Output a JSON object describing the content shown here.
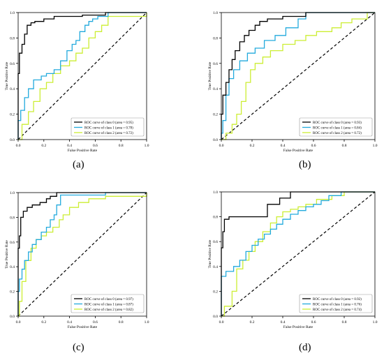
{
  "colors": {
    "class0": "#000000",
    "class1": "#22aadd",
    "class2": "#ccee33",
    "diagonal": "#000000"
  },
  "chart_data": [
    {
      "type": "line",
      "panel_label": "(a)",
      "xlabel": "False Positive Rate",
      "ylabel": "True Positive Rate",
      "xlim": [
        0,
        1
      ],
      "ylim": [
        0,
        1
      ],
      "x_ticks": [
        "0.0",
        "0.2",
        "0.4",
        "0.6",
        "0.8",
        "1.0"
      ],
      "y_ticks": [
        "0.0",
        "0.2",
        "0.4",
        "0.6",
        "0.8",
        "1.0"
      ],
      "grid": false,
      "legend_position": "lower-right",
      "series": [
        {
          "name": "ROC curve of class 0 (area = 0.95)",
          "color": "#000000",
          "x": [
            0,
            0,
            0.01,
            0.01,
            0.03,
            0.03,
            0.05,
            0.05,
            0.07,
            0.07,
            0.1,
            0.1,
            0.13,
            0.13,
            0.2,
            0.2,
            0.28,
            0.28,
            0.5,
            0.5,
            0.68,
            0.68,
            1.0
          ],
          "y": [
            0,
            0.52,
            0.52,
            0.68,
            0.68,
            0.75,
            0.75,
            0.83,
            0.83,
            0.9,
            0.9,
            0.92,
            0.92,
            0.93,
            0.93,
            0.95,
            0.95,
            0.97,
            0.97,
            0.98,
            0.98,
            1.0,
            1.0
          ]
        },
        {
          "name": "ROC curve of class 1 (area = 0.78)",
          "color": "#22aadd",
          "x": [
            0,
            0,
            0.02,
            0.02,
            0.05,
            0.05,
            0.08,
            0.08,
            0.12,
            0.12,
            0.18,
            0.18,
            0.22,
            0.22,
            0.28,
            0.28,
            0.33,
            0.33,
            0.38,
            0.38,
            0.42,
            0.42,
            0.45,
            0.45,
            0.48,
            0.48,
            0.52,
            0.52,
            0.55,
            0.55,
            0.58,
            0.58,
            0.62,
            0.62,
            0.7,
            0.7,
            1.0
          ],
          "y": [
            0,
            0.15,
            0.15,
            0.23,
            0.23,
            0.33,
            0.33,
            0.4,
            0.4,
            0.47,
            0.47,
            0.5,
            0.5,
            0.52,
            0.52,
            0.55,
            0.55,
            0.62,
            0.62,
            0.7,
            0.7,
            0.75,
            0.75,
            0.78,
            0.78,
            0.85,
            0.85,
            0.9,
            0.9,
            0.93,
            0.93,
            0.95,
            0.95,
            0.97,
            0.97,
            1.0,
            1.0
          ]
        },
        {
          "name": "ROC curve of class 2 (area = 0.72)",
          "color": "#ccee33",
          "x": [
            0,
            0.03,
            0.03,
            0.08,
            0.08,
            0.12,
            0.12,
            0.17,
            0.17,
            0.22,
            0.22,
            0.27,
            0.27,
            0.33,
            0.33,
            0.4,
            0.4,
            0.45,
            0.45,
            0.5,
            0.5,
            0.55,
            0.55,
            0.6,
            0.6,
            0.65,
            0.65,
            0.7,
            0.7,
            1.0,
            1.0
          ],
          "y": [
            0,
            0,
            0.12,
            0.12,
            0.22,
            0.22,
            0.3,
            0.3,
            0.4,
            0.4,
            0.45,
            0.45,
            0.52,
            0.52,
            0.58,
            0.58,
            0.62,
            0.62,
            0.68,
            0.68,
            0.72,
            0.72,
            0.8,
            0.8,
            0.85,
            0.85,
            0.9,
            0.9,
            0.97,
            0.97,
            1.0
          ]
        }
      ]
    },
    {
      "type": "line",
      "panel_label": "(b)",
      "xlabel": "False Positive Rate",
      "ylabel": "True Positive Rate",
      "xlim": [
        0,
        1
      ],
      "ylim": [
        0,
        1
      ],
      "x_ticks": [
        "0.0",
        "0.2",
        "0.4",
        "0.6",
        "0.8",
        "1.0"
      ],
      "y_ticks": [
        "0.0",
        "0.2",
        "0.4",
        "0.6",
        "0.8",
        "1.0"
      ],
      "grid": false,
      "legend_position": "lower-right",
      "series": [
        {
          "name": "ROC curve of class 0 (area = 0.93)",
          "color": "#000000",
          "x": [
            0,
            0,
            0.01,
            0.01,
            0.03,
            0.03,
            0.05,
            0.05,
            0.07,
            0.07,
            0.09,
            0.09,
            0.12,
            0.12,
            0.15,
            0.15,
            0.18,
            0.18,
            0.22,
            0.22,
            0.25,
            0.25,
            0.3,
            0.3,
            0.4,
            0.4,
            0.55,
            0.55,
            1.0
          ],
          "y": [
            0,
            0.2,
            0.2,
            0.35,
            0.35,
            0.45,
            0.45,
            0.55,
            0.55,
            0.63,
            0.63,
            0.7,
            0.7,
            0.77,
            0.77,
            0.82,
            0.82,
            0.86,
            0.86,
            0.9,
            0.9,
            0.93,
            0.93,
            0.95,
            0.95,
            0.97,
            0.97,
            1.0,
            1.0
          ]
        },
        {
          "name": "ROC curve of class 1 (area = 0.84)",
          "color": "#22aadd",
          "x": [
            0,
            0,
            0.01,
            0.01,
            0.03,
            0.03,
            0.05,
            0.05,
            0.08,
            0.08,
            0.12,
            0.12,
            0.17,
            0.17,
            0.22,
            0.22,
            0.28,
            0.28,
            0.35,
            0.35,
            0.42,
            0.42,
            0.5,
            0.5,
            0.55,
            0.55,
            1.0
          ],
          "y": [
            0,
            0.05,
            0.05,
            0.15,
            0.15,
            0.35,
            0.35,
            0.48,
            0.48,
            0.55,
            0.55,
            0.62,
            0.62,
            0.68,
            0.68,
            0.72,
            0.72,
            0.78,
            0.78,
            0.82,
            0.82,
            0.88,
            0.88,
            0.95,
            0.95,
            1.0,
            1.0
          ]
        },
        {
          "name": "ROC curve of class 2 (area = 0.72)",
          "color": "#ccee33",
          "x": [
            0,
            0.03,
            0.03,
            0.07,
            0.07,
            0.1,
            0.1,
            0.13,
            0.13,
            0.16,
            0.16,
            0.19,
            0.19,
            0.22,
            0.22,
            0.27,
            0.27,
            0.32,
            0.32,
            0.4,
            0.4,
            0.48,
            0.48,
            0.55,
            0.55,
            0.62,
            0.62,
            0.72,
            0.72,
            0.78,
            0.78,
            0.85,
            0.85,
            0.95,
            0.95,
            1.0
          ],
          "y": [
            0,
            0,
            0.05,
            0.05,
            0.12,
            0.12,
            0.2,
            0.2,
            0.3,
            0.3,
            0.45,
            0.45,
            0.55,
            0.55,
            0.6,
            0.6,
            0.65,
            0.65,
            0.7,
            0.7,
            0.75,
            0.75,
            0.78,
            0.78,
            0.82,
            0.82,
            0.85,
            0.85,
            0.88,
            0.88,
            0.92,
            0.92,
            0.95,
            0.95,
            1.0,
            1.0
          ]
        }
      ]
    },
    {
      "type": "line",
      "panel_label": "(c)",
      "xlabel": "False Positive Rate",
      "ylabel": "True Positive Rate",
      "xlim": [
        0,
        1
      ],
      "ylim": [
        0,
        1
      ],
      "x_ticks": [
        "0.0",
        "0.2",
        "0.4",
        "0.6",
        "0.8",
        "1.0"
      ],
      "y_ticks": [
        "0.0",
        "0.2",
        "0.4",
        "0.6",
        "0.8",
        "1.0"
      ],
      "grid": false,
      "legend_position": "lower-right",
      "series": [
        {
          "name": "ROC curve of class 0 (area = 0.97)",
          "color": "#000000",
          "x": [
            0,
            0,
            0.01,
            0.01,
            0.02,
            0.02,
            0.04,
            0.04,
            0.07,
            0.07,
            0.11,
            0.11,
            0.17,
            0.17,
            0.22,
            0.22,
            0.25,
            0.25,
            0.3,
            0.3,
            1.0
          ],
          "y": [
            0,
            0.55,
            0.55,
            0.65,
            0.65,
            0.8,
            0.8,
            0.85,
            0.85,
            0.88,
            0.88,
            0.9,
            0.9,
            0.92,
            0.92,
            0.95,
            0.95,
            0.97,
            0.97,
            1.0,
            1.0
          ]
        },
        {
          "name": "ROC curve of class 1 (area = 0.87)",
          "color": "#22aadd",
          "x": [
            0,
            0,
            0.01,
            0.01,
            0.03,
            0.03,
            0.05,
            0.05,
            0.08,
            0.08,
            0.11,
            0.11,
            0.14,
            0.14,
            0.18,
            0.18,
            0.22,
            0.22,
            0.25,
            0.25,
            0.28,
            0.28,
            0.3,
            0.3,
            0.33,
            0.33,
            0.68,
            0.68,
            1.0
          ],
          "y": [
            0,
            0.2,
            0.2,
            0.3,
            0.3,
            0.38,
            0.38,
            0.45,
            0.45,
            0.52,
            0.52,
            0.58,
            0.58,
            0.62,
            0.62,
            0.68,
            0.68,
            0.72,
            0.72,
            0.78,
            0.78,
            0.82,
            0.82,
            0.9,
            0.9,
            0.98,
            0.98,
            1.0,
            1.0
          ]
        },
        {
          "name": "ROC curve of class 2 (area = 0.82)",
          "color": "#ccee33",
          "x": [
            0,
            0.01,
            0.01,
            0.03,
            0.03,
            0.06,
            0.06,
            0.1,
            0.1,
            0.14,
            0.14,
            0.18,
            0.18,
            0.22,
            0.22,
            0.27,
            0.27,
            0.32,
            0.32,
            0.35,
            0.35,
            0.4,
            0.4,
            0.47,
            0.47,
            0.55,
            0.55,
            0.68,
            0.68,
            1.0,
            1.0
          ],
          "y": [
            0,
            0,
            0.12,
            0.12,
            0.28,
            0.28,
            0.45,
            0.45,
            0.55,
            0.55,
            0.62,
            0.62,
            0.65,
            0.65,
            0.68,
            0.68,
            0.72,
            0.72,
            0.78,
            0.78,
            0.82,
            0.82,
            0.88,
            0.88,
            0.92,
            0.92,
            0.95,
            0.95,
            0.97,
            0.97,
            1.0
          ]
        }
      ]
    },
    {
      "type": "line",
      "panel_label": "(d)",
      "xlabel": "False Positive Rate",
      "ylabel": "True Positive Rate",
      "xlim": [
        0,
        1
      ],
      "ylim": [
        0,
        1
      ],
      "x_ticks": [
        "0.0",
        "0.2",
        "0.4",
        "0.6",
        "0.8",
        "1.0"
      ],
      "y_ticks": [
        "0.0",
        "0.2",
        "0.4",
        "0.6",
        "0.8",
        "1.0"
      ],
      "grid": false,
      "legend_position": "lower-right",
      "series": [
        {
          "name": "ROC curve of class 0 (area = 0.92)",
          "color": "#000000",
          "x": [
            0,
            0,
            0.01,
            0.01,
            0.02,
            0.02,
            0.05,
            0.05,
            0.3,
            0.3,
            0.38,
            0.38,
            0.45,
            0.45,
            0.75,
            0.75,
            1.0
          ],
          "y": [
            0,
            0.55,
            0.55,
            0.68,
            0.68,
            0.78,
            0.78,
            0.8,
            0.8,
            0.9,
            0.9,
            0.95,
            0.95,
            1.0,
            1.0,
            1.0,
            1.0
          ]
        },
        {
          "name": "ROC curve of class 1 (area = 0.76)",
          "color": "#22aadd",
          "x": [
            0,
            0,
            0.03,
            0.03,
            0.08,
            0.08,
            0.12,
            0.12,
            0.16,
            0.16,
            0.2,
            0.2,
            0.24,
            0.24,
            0.28,
            0.28,
            0.32,
            0.32,
            0.36,
            0.36,
            0.4,
            0.4,
            0.45,
            0.45,
            0.5,
            0.5,
            0.55,
            0.55,
            0.6,
            0.6,
            0.65,
            0.65,
            0.7,
            0.7,
            0.78,
            0.78,
            1.0
          ],
          "y": [
            0,
            0.32,
            0.32,
            0.36,
            0.36,
            0.4,
            0.4,
            0.45,
            0.45,
            0.52,
            0.52,
            0.57,
            0.57,
            0.62,
            0.62,
            0.66,
            0.66,
            0.7,
            0.7,
            0.74,
            0.74,
            0.78,
            0.78,
            0.82,
            0.82,
            0.85,
            0.85,
            0.88,
            0.88,
            0.9,
            0.9,
            0.93,
            0.93,
            0.97,
            0.97,
            1.0,
            1.0
          ]
        },
        {
          "name": "ROC curve of class 2 (area = 0.74)",
          "color": "#ccee33",
          "x": [
            0,
            0.02,
            0.02,
            0.07,
            0.07,
            0.1,
            0.1,
            0.14,
            0.14,
            0.18,
            0.18,
            0.22,
            0.22,
            0.27,
            0.27,
            0.32,
            0.32,
            0.36,
            0.36,
            0.4,
            0.4,
            0.45,
            0.45,
            0.5,
            0.5,
            0.55,
            0.55,
            0.62,
            0.62,
            0.72,
            0.72,
            0.8,
            0.8,
            1.0
          ],
          "y": [
            0,
            0,
            0.08,
            0.08,
            0.2,
            0.2,
            0.38,
            0.38,
            0.45,
            0.45,
            0.52,
            0.52,
            0.6,
            0.6,
            0.68,
            0.68,
            0.75,
            0.75,
            0.8,
            0.8,
            0.84,
            0.84,
            0.86,
            0.86,
            0.88,
            0.88,
            0.9,
            0.9,
            0.94,
            0.94,
            0.97,
            0.97,
            1.0,
            1.0
          ]
        }
      ]
    }
  ]
}
